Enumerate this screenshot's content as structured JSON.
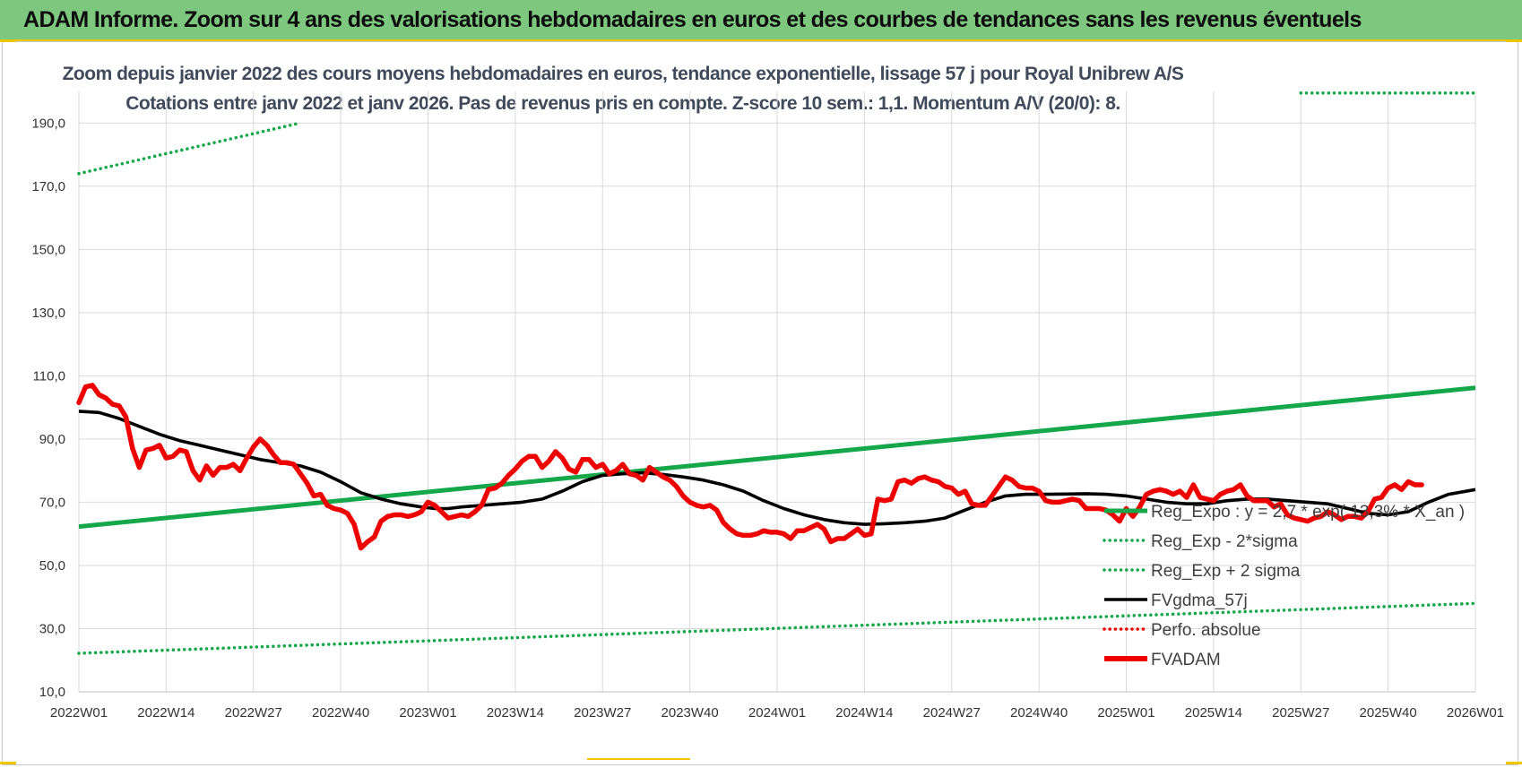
{
  "banner": {
    "title": "ADAM Informe. Zoom sur 4 ans des valorisations hebdomadaires en euros et des courbes de tendances sans les revenus éventuels"
  },
  "colors": {
    "banner_bg": "#7dc77e",
    "accent": "#f2c500",
    "green": "#14a84a",
    "red": "#ee0000",
    "black": "#000000"
  },
  "chart_data": {
    "type": "line",
    "title": "Zoom depuis janvier 2022 des cours moyens hebdomadaires en euros, tendance exponentielle, lissage 57 j pour Royal Unibrew A/S",
    "subtitle": "Cotations entre janv 2022 et janv 2026. Pas de revenus pris en compte. Z-score 10 sem.: 1,1. Momentum A/V (20/0): 8.",
    "xlabel": "",
    "ylabel": "",
    "x_range": [
      0,
      208
    ],
    "ylim": [
      10,
      200
    ],
    "grid": true,
    "legend_position": "bottom-right",
    "y_ticks": [
      {
        "v": 10,
        "label": "10,0"
      },
      {
        "v": 30,
        "label": "30,0"
      },
      {
        "v": 50,
        "label": "50,0"
      },
      {
        "v": 70,
        "label": "70,0"
      },
      {
        "v": 90,
        "label": "90,0"
      },
      {
        "v": 110,
        "label": "110,0"
      },
      {
        "v": 130,
        "label": "130,0"
      },
      {
        "v": 150,
        "label": "150,0"
      },
      {
        "v": 170,
        "label": "170,0"
      },
      {
        "v": 190,
        "label": "190,0"
      }
    ],
    "x_ticks": [
      {
        "i": 0,
        "label": "2022W01"
      },
      {
        "i": 13,
        "label": "2022W14"
      },
      {
        "i": 26,
        "label": "2022W27"
      },
      {
        "i": 39,
        "label": "2022W40"
      },
      {
        "i": 52,
        "label": "2023W01"
      },
      {
        "i": 65,
        "label": "2023W14"
      },
      {
        "i": 78,
        "label": "2023W27"
      },
      {
        "i": 91,
        "label": "2023W40"
      },
      {
        "i": 104,
        "label": "2024W01"
      },
      {
        "i": 117,
        "label": "2024W14"
      },
      {
        "i": 130,
        "label": "2024W27"
      },
      {
        "i": 143,
        "label": "2024W40"
      },
      {
        "i": 156,
        "label": "2025W01"
      },
      {
        "i": 169,
        "label": "2025W14"
      },
      {
        "i": 182,
        "label": "2025W27"
      },
      {
        "i": 195,
        "label": "2025W40"
      },
      {
        "i": 208,
        "label": "2026W01"
      }
    ],
    "series": [
      {
        "name": "Reg_Expo : y = 2,7 * exp( 13,3% * X_an )",
        "style": "solid",
        "color": "#14a84a",
        "points": [
          [
            0,
            62.3
          ],
          [
            208,
            106.2
          ]
        ]
      },
      {
        "name": "Reg_Exp - 2*sigma",
        "style": "dotted",
        "color": "#14a84a",
        "points": [
          [
            0,
            22.2
          ],
          [
            208,
            38.0
          ]
        ]
      },
      {
        "name": "Reg_Exp + 2 sigma",
        "style": "dotted",
        "color": "#14a84a",
        "points": [
          [
            0,
            174
          ],
          [
            35,
            191
          ]
        ],
        "points_b": [
          [
            182,
            199.5
          ],
          [
            208,
            199.5
          ]
        ]
      },
      {
        "name": "FVgdma_57j",
        "style": "solid",
        "color": "#000000",
        "points": [
          [
            0,
            98.8
          ],
          [
            3,
            98.4
          ],
          [
            6,
            96.5
          ],
          [
            9,
            94
          ],
          [
            12,
            91.5
          ],
          [
            15,
            89.5
          ],
          [
            18,
            88
          ],
          [
            21,
            86.5
          ],
          [
            24,
            85
          ],
          [
            27,
            83.5
          ],
          [
            30,
            82.5
          ],
          [
            33,
            81.5
          ],
          [
            36,
            79.5
          ],
          [
            39,
            76.5
          ],
          [
            42,
            73
          ],
          [
            45,
            71
          ],
          [
            48,
            69.5
          ],
          [
            51,
            68.5
          ],
          [
            53,
            68
          ],
          [
            55,
            68
          ],
          [
            57,
            68.5
          ],
          [
            60,
            69
          ],
          [
            63,
            69.5
          ],
          [
            66,
            70
          ],
          [
            69,
            71
          ],
          [
            72,
            73.5
          ],
          [
            75,
            76.5
          ],
          [
            78,
            78.5
          ],
          [
            81,
            79
          ],
          [
            84,
            79.3
          ],
          [
            87,
            78.8
          ],
          [
            90,
            78
          ],
          [
            93,
            77
          ],
          [
            96,
            75.5
          ],
          [
            99,
            73.5
          ],
          [
            102,
            70.5
          ],
          [
            105,
            68
          ],
          [
            108,
            66
          ],
          [
            111,
            64.5
          ],
          [
            114,
            63.5
          ],
          [
            117,
            63
          ],
          [
            120,
            63.2
          ],
          [
            123,
            63.5
          ],
          [
            126,
            64
          ],
          [
            129,
            65
          ],
          [
            132,
            67.5
          ],
          [
            135,
            70
          ],
          [
            138,
            72
          ],
          [
            141,
            72.5
          ],
          [
            144,
            72.5
          ],
          [
            147,
            72.6
          ],
          [
            150,
            72.7
          ],
          [
            153,
            72.5
          ],
          [
            156,
            72
          ],
          [
            159,
            71
          ],
          [
            162,
            70
          ],
          [
            165,
            69.5
          ],
          [
            168,
            69.5
          ],
          [
            171,
            70.5
          ],
          [
            174,
            71
          ],
          [
            177,
            71
          ],
          [
            180,
            70.5
          ],
          [
            183,
            70
          ],
          [
            186,
            69.5
          ],
          [
            189,
            68
          ],
          [
            192,
            66.5
          ],
          [
            195,
            66
          ],
          [
            198,
            67
          ],
          [
            201,
            70
          ],
          [
            204,
            72.5
          ],
          [
            208,
            74
          ]
        ]
      },
      {
        "name": "Perfo. absolue",
        "style": "dotted",
        "color": "#ee0000",
        "points": []
      },
      {
        "name": "FVADAM",
        "style": "solid",
        "color": "#ee0000",
        "points": [
          [
            0,
            101.5
          ],
          [
            1,
            106.5
          ],
          [
            2,
            107
          ],
          [
            3,
            104
          ],
          [
            4,
            103
          ],
          [
            5,
            101
          ],
          [
            6,
            100.5
          ],
          [
            7,
            97
          ],
          [
            8,
            87
          ],
          [
            9,
            81
          ],
          [
            10,
            86.5
          ],
          [
            11,
            87
          ],
          [
            12,
            88
          ],
          [
            13,
            84
          ],
          [
            14,
            84.5
          ],
          [
            15,
            86.5
          ],
          [
            16,
            86
          ],
          [
            17,
            80
          ],
          [
            18,
            77
          ],
          [
            19,
            81.5
          ],
          [
            20,
            78.5
          ],
          [
            21,
            81
          ],
          [
            22,
            81
          ],
          [
            23,
            82
          ],
          [
            24,
            80
          ],
          [
            25,
            84
          ],
          [
            26,
            87.5
          ],
          [
            27,
            90
          ],
          [
            28,
            88
          ],
          [
            29,
            85
          ],
          [
            30,
            82.5
          ],
          [
            31,
            82.5
          ],
          [
            32,
            82
          ],
          [
            33,
            79
          ],
          [
            34,
            76
          ],
          [
            35,
            72
          ],
          [
            36,
            72.5
          ],
          [
            37,
            69
          ],
          [
            38,
            68
          ],
          [
            39,
            67.5
          ],
          [
            40,
            66.5
          ],
          [
            41,
            63
          ],
          [
            42,
            55.5
          ],
          [
            43,
            57.5
          ],
          [
            44,
            59
          ],
          [
            45,
            64
          ],
          [
            46,
            65.5
          ],
          [
            47,
            66
          ],
          [
            48,
            66
          ],
          [
            49,
            65.5
          ],
          [
            50,
            66
          ],
          [
            51,
            67
          ],
          [
            52,
            70
          ],
          [
            53,
            69
          ],
          [
            54,
            67
          ],
          [
            55,
            65
          ],
          [
            56,
            65.5
          ],
          [
            57,
            66
          ],
          [
            58,
            65.5
          ],
          [
            59,
            67
          ],
          [
            60,
            69
          ],
          [
            61,
            74
          ],
          [
            62,
            74.5
          ],
          [
            63,
            76
          ],
          [
            64,
            78.5
          ],
          [
            65,
            80.5
          ],
          [
            66,
            83
          ],
          [
            67,
            84.5
          ],
          [
            68,
            84.5
          ],
          [
            69,
            81
          ],
          [
            70,
            83
          ],
          [
            71,
            86
          ],
          [
            72,
            84
          ],
          [
            73,
            80.5
          ],
          [
            74,
            79.5
          ],
          [
            75,
            83.5
          ],
          [
            76,
            83.5
          ],
          [
            77,
            81
          ],
          [
            78,
            82
          ],
          [
            79,
            79
          ],
          [
            80,
            80
          ],
          [
            81,
            82
          ],
          [
            82,
            79
          ],
          [
            83,
            78.5
          ],
          [
            84,
            77
          ],
          [
            85,
            81
          ],
          [
            86,
            79.5
          ],
          [
            87,
            78
          ],
          [
            88,
            77
          ],
          [
            89,
            75
          ],
          [
            90,
            72
          ],
          [
            91,
            70
          ],
          [
            92,
            69
          ],
          [
            93,
            68.5
          ],
          [
            94,
            69
          ],
          [
            95,
            67.5
          ],
          [
            96,
            63.5
          ],
          [
            97,
            61.5
          ],
          [
            98,
            60
          ],
          [
            99,
            59.5
          ],
          [
            100,
            59.5
          ],
          [
            101,
            60
          ],
          [
            102,
            61
          ],
          [
            103,
            60.5
          ],
          [
            104,
            60.5
          ],
          [
            105,
            60
          ],
          [
            106,
            58.5
          ],
          [
            107,
            61
          ],
          [
            108,
            61
          ],
          [
            109,
            62
          ],
          [
            110,
            63
          ],
          [
            111,
            61.5
          ],
          [
            112,
            57.5
          ],
          [
            113,
            58.5
          ],
          [
            114,
            58.5
          ],
          [
            115,
            60
          ],
          [
            116,
            61.5
          ],
          [
            117,
            59.5
          ],
          [
            118,
            60
          ],
          [
            119,
            71
          ],
          [
            120,
            70.5
          ],
          [
            121,
            71
          ],
          [
            122,
            76.5
          ],
          [
            123,
            77
          ],
          [
            124,
            76
          ],
          [
            125,
            77.5
          ],
          [
            126,
            78
          ],
          [
            127,
            77
          ],
          [
            128,
            76.5
          ],
          [
            129,
            75
          ],
          [
            130,
            74.5
          ],
          [
            131,
            72.5
          ],
          [
            132,
            73.5
          ],
          [
            133,
            69.5
          ],
          [
            134,
            69
          ],
          [
            135,
            69
          ],
          [
            136,
            72
          ],
          [
            137,
            75
          ],
          [
            138,
            78
          ],
          [
            139,
            77
          ],
          [
            140,
            75
          ],
          [
            141,
            74.5
          ],
          [
            142,
            74.5
          ],
          [
            143,
            73.5
          ],
          [
            144,
            70.5
          ],
          [
            145,
            70
          ],
          [
            146,
            70
          ],
          [
            147,
            70.5
          ],
          [
            148,
            71
          ],
          [
            149,
            70.5
          ],
          [
            150,
            68
          ],
          [
            151,
            68
          ],
          [
            152,
            68
          ],
          [
            153,
            67.5
          ],
          [
            154,
            66
          ],
          [
            155,
            64
          ],
          [
            156,
            68
          ],
          [
            157,
            65.5
          ],
          [
            158,
            68.5
          ],
          [
            159,
            72.5
          ],
          [
            160,
            73.5
          ],
          [
            161,
            74
          ],
          [
            162,
            73.5
          ],
          [
            163,
            72.5
          ],
          [
            164,
            73.5
          ],
          [
            165,
            71.5
          ],
          [
            166,
            75.5
          ],
          [
            167,
            71.5
          ],
          [
            168,
            71
          ],
          [
            169,
            70.5
          ],
          [
            170,
            72.5
          ],
          [
            171,
            73.5
          ],
          [
            172,
            74
          ],
          [
            173,
            75.5
          ],
          [
            174,
            72
          ],
          [
            175,
            70.5
          ],
          [
            176,
            70.5
          ],
          [
            177,
            70.5
          ],
          [
            178,
            68.5
          ],
          [
            179,
            69.5
          ],
          [
            180,
            66
          ],
          [
            181,
            65
          ],
          [
            182,
            64.5
          ],
          [
            183,
            64
          ],
          [
            184,
            65
          ],
          [
            185,
            65.5
          ],
          [
            186,
            67
          ],
          [
            187,
            66
          ],
          [
            188,
            64.5
          ],
          [
            189,
            65.5
          ],
          [
            190,
            65.5
          ],
          [
            191,
            65
          ],
          [
            192,
            67
          ],
          [
            193,
            71
          ],
          [
            194,
            71.5
          ],
          [
            195,
            74.5
          ],
          [
            196,
            75.5
          ],
          [
            197,
            74
          ],
          [
            198,
            76.5
          ],
          [
            199,
            75.5
          ],
          [
            200,
            75.5
          ]
        ]
      }
    ]
  }
}
